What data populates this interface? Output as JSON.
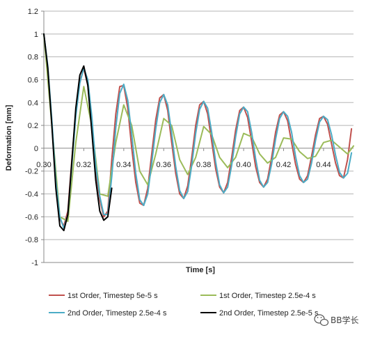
{
  "chart_data": {
    "type": "line",
    "title": "",
    "xlabel": "Time [s]",
    "ylabel": "Deformation [mm]",
    "xlim": [
      0.3,
      0.455
    ],
    "ylim": [
      -1,
      1.2
    ],
    "x_ticks": [
      "0.30",
      "0.32",
      "0.34",
      "0.36",
      "0.38",
      "0.40",
      "0.42",
      "0.44"
    ],
    "y_ticks": [
      "1.2",
      "1",
      "0.8",
      "0.6",
      "0.4",
      "0.2",
      "0",
      "-0.2",
      "-0.4",
      "-0.6",
      "-0.8",
      "-1"
    ],
    "grid": "horizontal",
    "legend_position": "bottom",
    "series": [
      {
        "name": "1st Order, Timestep 5e-5 s",
        "color": "#c0504d",
        "x": [
          0.3,
          0.302,
          0.304,
          0.306,
          0.308,
          0.31,
          0.312,
          0.314,
          0.316,
          0.318,
          0.32,
          0.322,
          0.324,
          0.326,
          0.328,
          0.33,
          0.332,
          0.334,
          0.336,
          0.338,
          0.34,
          0.342,
          0.344,
          0.346,
          0.348,
          0.35,
          0.352,
          0.354,
          0.356,
          0.358,
          0.36,
          0.362,
          0.364,
          0.366,
          0.368,
          0.37,
          0.372,
          0.374,
          0.376,
          0.378,
          0.38,
          0.382,
          0.384,
          0.386,
          0.388,
          0.39,
          0.392,
          0.394,
          0.396,
          0.398,
          0.4,
          0.402,
          0.404,
          0.406,
          0.408,
          0.41,
          0.412,
          0.414,
          0.416,
          0.418,
          0.42,
          0.422,
          0.424,
          0.426,
          0.428,
          0.43,
          0.432,
          0.434,
          0.436,
          0.438,
          0.44,
          0.442,
          0.444,
          0.446,
          0.448,
          0.45,
          0.452,
          0.454
        ],
        "values": [
          1.0,
          0.7,
          0.22,
          -0.3,
          -0.62,
          -0.68,
          -0.55,
          -0.1,
          0.3,
          0.58,
          0.7,
          0.55,
          0.2,
          -0.2,
          -0.45,
          -0.6,
          -0.55,
          -0.1,
          0.3,
          0.54,
          0.55,
          0.35,
          0.0,
          -0.3,
          -0.48,
          -0.5,
          -0.35,
          -0.05,
          0.25,
          0.44,
          0.47,
          0.33,
          0.05,
          -0.22,
          -0.4,
          -0.44,
          -0.33,
          -0.08,
          0.2,
          0.38,
          0.41,
          0.3,
          0.06,
          -0.18,
          -0.34,
          -0.39,
          -0.3,
          -0.08,
          0.16,
          0.33,
          0.36,
          0.27,
          0.06,
          -0.16,
          -0.3,
          -0.34,
          -0.27,
          -0.08,
          0.14,
          0.29,
          0.32,
          0.24,
          0.05,
          -0.14,
          -0.27,
          -0.3,
          -0.24,
          -0.07,
          0.12,
          0.26,
          0.28,
          0.21,
          0.04,
          -0.13,
          -0.24,
          -0.26,
          -0.1,
          0.17
        ]
      },
      {
        "name": "1st Order, Timestep 2.5e-4 s",
        "color": "#9bbb59",
        "x": [
          0.3,
          0.304,
          0.308,
          0.312,
          0.316,
          0.32,
          0.324,
          0.328,
          0.332,
          0.336,
          0.34,
          0.344,
          0.348,
          0.352,
          0.356,
          0.36,
          0.364,
          0.368,
          0.372,
          0.376,
          0.38,
          0.384,
          0.388,
          0.392,
          0.396,
          0.4,
          0.404,
          0.408,
          0.412,
          0.416,
          0.42,
          0.424,
          0.428,
          0.432,
          0.436,
          0.44,
          0.444,
          0.448,
          0.452,
          0.455
        ],
        "values": [
          1.0,
          0.2,
          -0.6,
          -0.64,
          0.05,
          0.54,
          0.2,
          -0.4,
          -0.42,
          0.05,
          0.38,
          0.2,
          -0.2,
          -0.32,
          -0.05,
          0.26,
          0.2,
          -0.1,
          -0.23,
          -0.08,
          0.19,
          0.12,
          -0.08,
          -0.17,
          -0.08,
          0.13,
          0.1,
          -0.05,
          -0.13,
          -0.08,
          0.09,
          0.08,
          -0.03,
          -0.09,
          -0.07,
          0.05,
          0.07,
          0.01,
          -0.05,
          0.02
        ]
      },
      {
        "name": "2nd Order, Timestep 2.5e-4 s",
        "color": "#4bacc6",
        "x": [
          0.3,
          0.302,
          0.304,
          0.306,
          0.308,
          0.31,
          0.312,
          0.314,
          0.316,
          0.318,
          0.32,
          0.322,
          0.324,
          0.326,
          0.328,
          0.33,
          0.332,
          0.334,
          0.336,
          0.338,
          0.34,
          0.342,
          0.344,
          0.346,
          0.348,
          0.35,
          0.352,
          0.354,
          0.356,
          0.358,
          0.36,
          0.362,
          0.364,
          0.366,
          0.368,
          0.37,
          0.372,
          0.374,
          0.376,
          0.378,
          0.38,
          0.382,
          0.384,
          0.386,
          0.388,
          0.39,
          0.392,
          0.394,
          0.396,
          0.398,
          0.4,
          0.402,
          0.404,
          0.406,
          0.408,
          0.41,
          0.412,
          0.414,
          0.416,
          0.418,
          0.42,
          0.422,
          0.424,
          0.426,
          0.428,
          0.43,
          0.432,
          0.434,
          0.436,
          0.438,
          0.44,
          0.442,
          0.444,
          0.446,
          0.448,
          0.45,
          0.452,
          0.454
        ],
        "values": [
          1.0,
          0.72,
          0.25,
          -0.28,
          -0.6,
          -0.7,
          -0.58,
          -0.15,
          0.28,
          0.57,
          0.7,
          0.6,
          0.28,
          -0.15,
          -0.42,
          -0.58,
          -0.58,
          -0.25,
          0.18,
          0.48,
          0.56,
          0.42,
          0.12,
          -0.22,
          -0.45,
          -0.5,
          -0.4,
          -0.13,
          0.17,
          0.4,
          0.47,
          0.38,
          0.13,
          -0.16,
          -0.37,
          -0.44,
          -0.38,
          -0.15,
          0.13,
          0.34,
          0.41,
          0.35,
          0.14,
          -0.12,
          -0.32,
          -0.39,
          -0.34,
          -0.15,
          0.1,
          0.3,
          0.36,
          0.32,
          0.14,
          -0.09,
          -0.28,
          -0.34,
          -0.3,
          -0.14,
          0.08,
          0.26,
          0.32,
          0.28,
          0.14,
          -0.07,
          -0.24,
          -0.3,
          -0.27,
          -0.13,
          0.07,
          0.23,
          0.28,
          0.25,
          0.12,
          -0.06,
          -0.21,
          -0.26,
          -0.22,
          -0.04
        ]
      },
      {
        "name": "2nd Order, Timestep 2.5e-5 s",
        "color": "#000000",
        "x": [
          0.3,
          0.302,
          0.304,
          0.306,
          0.308,
          0.31,
          0.312,
          0.314,
          0.316,
          0.318,
          0.32,
          0.322,
          0.324,
          0.326,
          0.328,
          0.33,
          0.332,
          0.334
        ],
        "values": [
          1.0,
          0.7,
          0.2,
          -0.35,
          -0.68,
          -0.72,
          -0.58,
          -0.12,
          0.35,
          0.64,
          0.72,
          0.55,
          0.15,
          -0.28,
          -0.55,
          -0.63,
          -0.6,
          -0.35
        ]
      }
    ]
  },
  "watermark": {
    "text": "BB学长",
    "icon": "wechat-icon"
  }
}
